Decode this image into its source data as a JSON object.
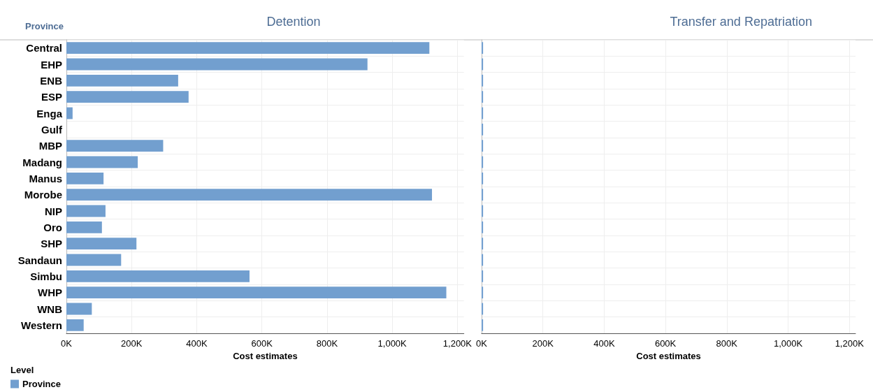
{
  "chart_data": [
    {
      "type": "bar",
      "orientation": "horizontal",
      "title": "Detention",
      "ylabel": "Province",
      "xlabel": "Cost estimates",
      "legend_title": "Level",
      "legend": "bottom left",
      "grid": true,
      "categories": [
        "Central",
        "EHP",
        "ENB",
        "ESP",
        "Enga",
        "Gulf",
        "MBP",
        "Madang",
        "Manus",
        "Morobe",
        "NIP",
        "Oro",
        "SHP",
        "Sandaun",
        "Simbu",
        "WHP",
        "WNB",
        "Western"
      ],
      "series": [
        {
          "name": "Province",
          "color": "#729fcf",
          "values": [
            1114000,
            924000,
            343000,
            375000,
            19000,
            0,
            297000,
            219000,
            114000,
            1122000,
            120000,
            109000,
            215000,
            168000,
            562000,
            1166000,
            78000,
            53000
          ]
        }
      ],
      "xlim": [
        0,
        1220000
      ],
      "xticks": [
        {
          "value": 0,
          "label": "0K"
        },
        {
          "value": 200000,
          "label": "200K"
        },
        {
          "value": 400000,
          "label": "400K"
        },
        {
          "value": 600000,
          "label": "600K"
        },
        {
          "value": 800000,
          "label": "800K"
        },
        {
          "value": 1000000,
          "label": "1,000K"
        },
        {
          "value": 1200000,
          "label": "1,200K"
        }
      ]
    },
    {
      "type": "bar",
      "orientation": "horizontal",
      "title": "Transfer and Repatriation",
      "xlabel": "Cost estimates",
      "grid": true,
      "tick_labels": "x",
      "categories": [
        null,
        null,
        null,
        null,
        null,
        null,
        null,
        null,
        null,
        null,
        null,
        null,
        null,
        null,
        null,
        null,
        null,
        null
      ],
      "series": [
        {
          "color": "#729fcf",
          "values": [
            5000,
            5000,
            5000,
            5000,
            5000,
            5000,
            5000,
            5000,
            5000,
            5000,
            5000,
            5000,
            5000,
            5000,
            5000,
            5000,
            5000,
            5000
          ]
        }
      ],
      "xlim": [
        0,
        1220000
      ],
      "xticks": [
        {
          "value": 0,
          "label": "0K"
        },
        {
          "value": 200000,
          "label": "200K"
        },
        {
          "value": 400000,
          "label": "400K"
        },
        {
          "value": 600000,
          "label": "600K"
        },
        {
          "value": 800000,
          "label": "800K"
        },
        {
          "value": 1000000,
          "label": "1,000K"
        },
        {
          "value": 1200000,
          "label": "1,200K"
        }
      ]
    }
  ]
}
